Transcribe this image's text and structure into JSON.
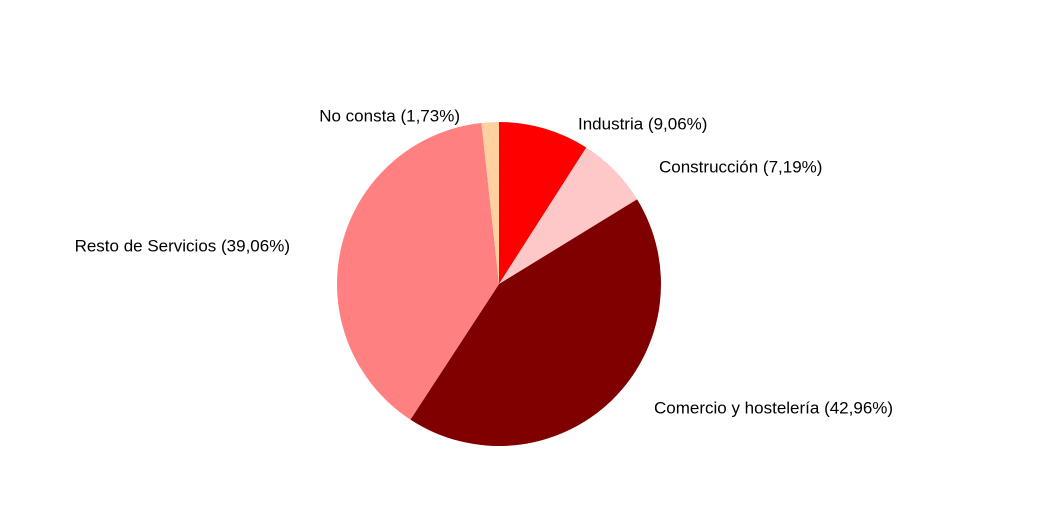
{
  "chart_data": {
    "type": "pie",
    "categories": [
      "Industria (9,06%)",
      "Construcción (7,19%)",
      "Comercio y hostelería (42,96%)",
      "Resto de Servicios (39,06%)",
      "No consta (1,73%)"
    ],
    "values": [
      9.06,
      7.19,
      42.96,
      39.06,
      1.73
    ],
    "colors": [
      "#ff0000",
      "#ffc8c8",
      "#800000",
      "#ff8080",
      "#ffd0a0"
    ]
  }
}
